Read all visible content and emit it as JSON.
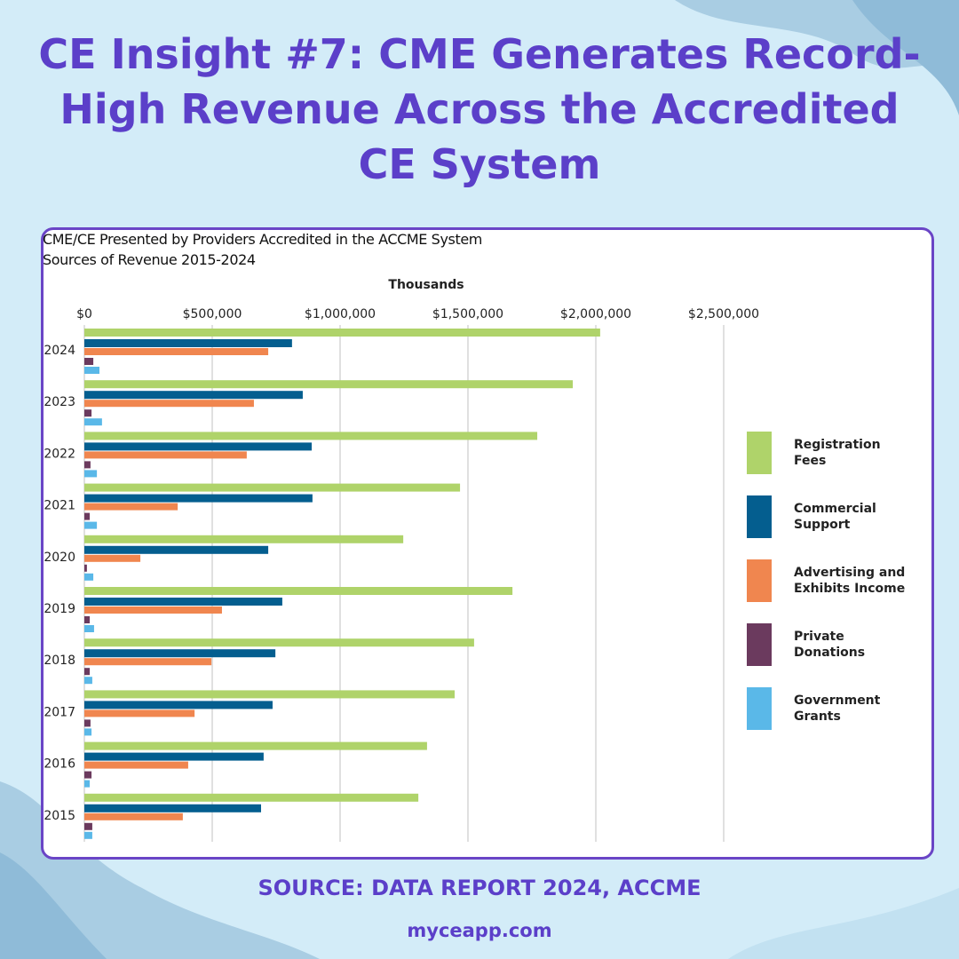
{
  "headline": "CE Insight #7: CME Generates Record-High Revenue Across the Accredited CE System",
  "source": "SOURCE: DATA REPORT 2024, ACCME",
  "website": "myceapp.com",
  "chart_data": {
    "type": "bar",
    "orientation": "horizontal",
    "title": "CME/CE Presented by Providers Accredited in the ACCME System",
    "subtitle": "Sources of Revenue 2015-2024",
    "xlabel": "Thousands",
    "xlim": [
      0,
      2500000
    ],
    "xticks": [
      "$0",
      "$500,000",
      "$1,000,000",
      "$1,500,000",
      "$2,000,000",
      "$2,500,000"
    ],
    "grid": true,
    "legend_position": "right",
    "categories": [
      "2024",
      "2023",
      "2022",
      "2021",
      "2020",
      "2019",
      "2018",
      "2017",
      "2016",
      "2015"
    ],
    "series": [
      {
        "name": "Registration Fees",
        "color": "#afd36a",
        "values": [
          2017000,
          1910000,
          1771000,
          1469000,
          1247000,
          1674000,
          1524000,
          1448000,
          1340000,
          1306000
        ]
      },
      {
        "name": "Commercial Support",
        "color": "#045e8f",
        "values": [
          812000,
          854000,
          889000,
          892000,
          719000,
          774000,
          747000,
          736000,
          701000,
          691000
        ]
      },
      {
        "name": "Advertising and Exhibits Income",
        "color": "#f0864f",
        "values": [
          719000,
          663000,
          635000,
          365000,
          219000,
          538000,
          497000,
          431000,
          406000,
          385000
        ]
      },
      {
        "name": "Private Donations",
        "color": "#6b3a5e",
        "values": [
          35000,
          28000,
          24000,
          21000,
          10000,
          21000,
          21000,
          24000,
          28000,
          31000
        ]
      },
      {
        "name": "Government Grants",
        "color": "#5ab8e8",
        "values": [
          59000,
          69000,
          49000,
          49000,
          35000,
          38000,
          31000,
          28000,
          21000,
          31000
        ]
      }
    ],
    "legend_lines": [
      [
        "Registration",
        "Fees"
      ],
      [
        "Commercial",
        "Support"
      ],
      [
        "Advertising and",
        "Exhibits Income"
      ],
      [
        "Private",
        "Donations"
      ],
      [
        "Government",
        "Grants"
      ]
    ]
  }
}
